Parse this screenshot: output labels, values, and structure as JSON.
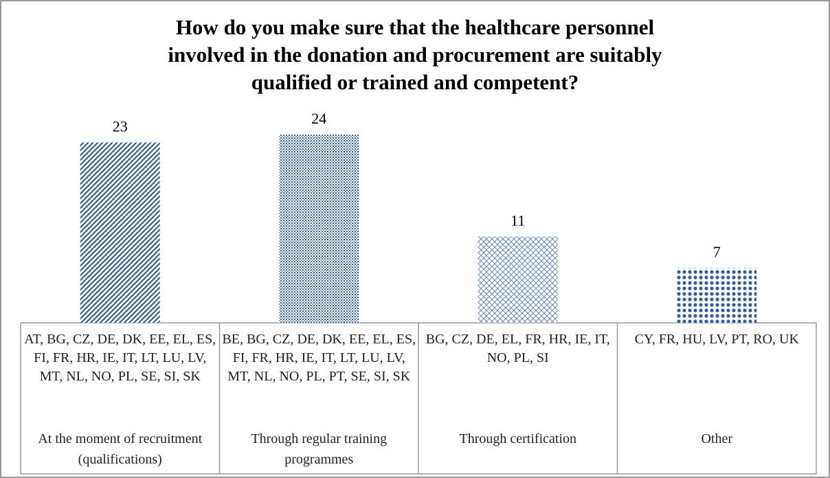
{
  "chart_data": {
    "type": "bar",
    "title": [
      "How do you make sure that the healthcare personnel",
      "involved in the donation and procurement are suitably",
      "qualified or trained and competent?"
    ],
    "categories": [
      "At the moment of recruitment (qualifications)",
      "Through regular training programmes",
      "Through certification",
      "Other"
    ],
    "values": [
      23,
      24,
      11,
      7
    ],
    "countries": [
      "AT, BG, CZ, DE, DK, EE, EL, ES, FI, FR, HR, IE, IT, LT, LU, LV, MT, NL, NO, PL, SE, SI, SK",
      "BE, BG, CZ, DE, DK, EE, EL, ES, FI, FR, HR, IE, IT, LT, LU, LV, MT, NL, NO, PL, PT, SE, SI, SK",
      "BG, CZ, DE, EL, FR, HR, IE, IT, NO, PL, SI",
      "CY, FR, HU, LV, PT, RO, UK"
    ],
    "color": "#2f5f96"
  }
}
